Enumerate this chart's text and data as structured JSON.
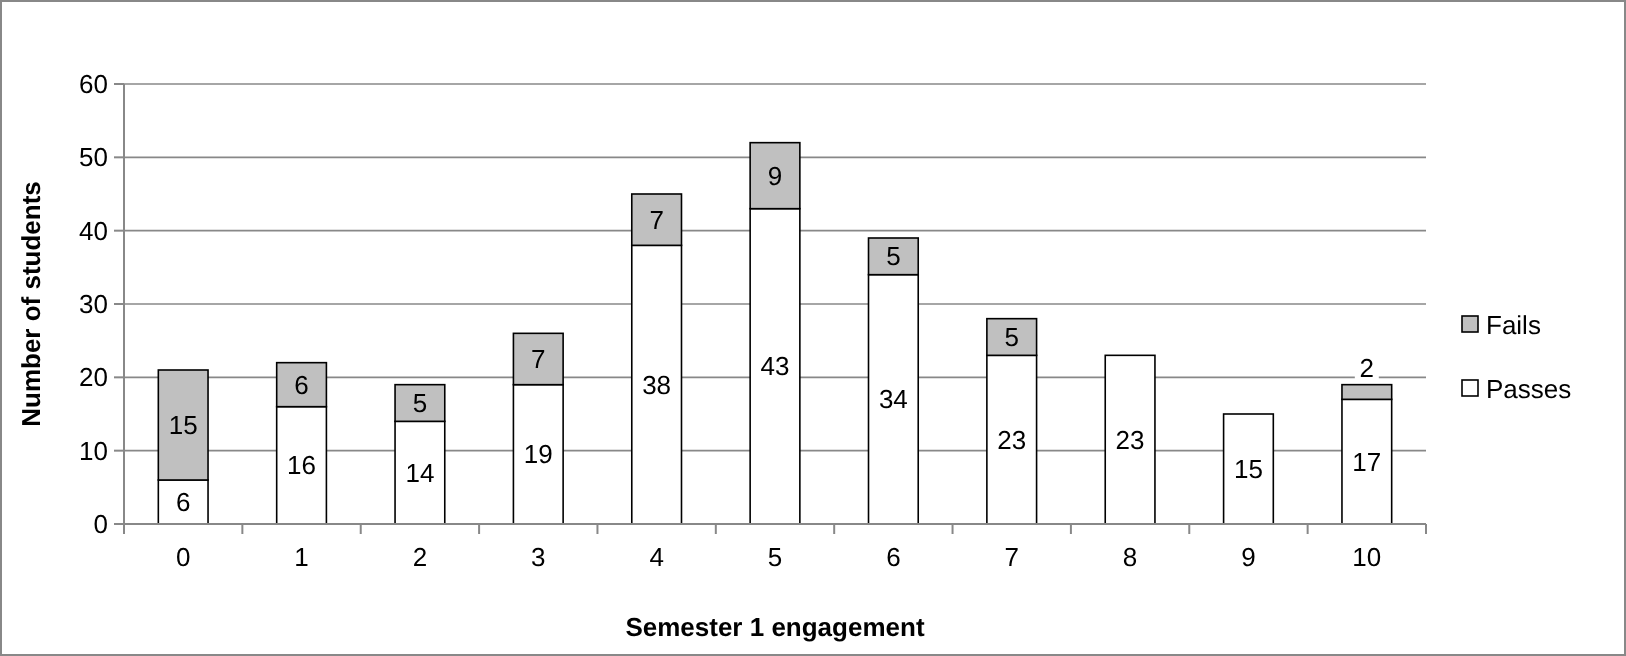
{
  "chart_data": {
    "type": "bar",
    "stacked": true,
    "xlabel": "Semester 1 engagement",
    "ylabel": "Number of students",
    "categories": [
      "0",
      "1",
      "2",
      "3",
      "4",
      "5",
      "6",
      "7",
      "8",
      "9",
      "10"
    ],
    "series": [
      {
        "name": "Passes",
        "color": "#ffffff",
        "values": [
          6,
          16,
          14,
          19,
          38,
          43,
          34,
          23,
          23,
          15,
          17
        ]
      },
      {
        "name": "Fails",
        "color": "#c0c0c0",
        "values": [
          15,
          6,
          5,
          7,
          7,
          9,
          5,
          5,
          null,
          null,
          2
        ]
      }
    ],
    "ylim": [
      0,
      60
    ],
    "yticks": [
      0,
      10,
      20,
      30,
      40,
      50,
      60
    ],
    "grid": "y",
    "legend": "right",
    "data_labels": true
  }
}
